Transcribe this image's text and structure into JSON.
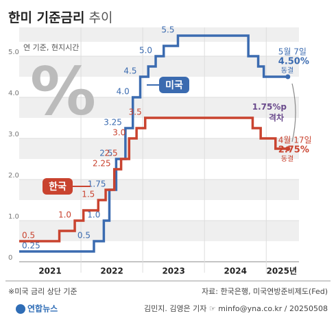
{
  "chart_data": {
    "type": "step",
    "title": "한미 기준금리",
    "title_suffix": "추이",
    "subtitle": "연 기준, 현지시간",
    "icon": "%",
    "xlim": [
      2021.0,
      2025.53
    ],
    "ylim": [
      0,
      5.7
    ],
    "yticks": [
      0,
      {
        "value": 1,
        "label": "1.0"
      },
      {
        "value": 2,
        "label": "2.0"
      },
      {
        "value": 3,
        "label": "3.0"
      },
      {
        "value": 4,
        "label": "4.0"
      },
      {
        "value": 5,
        "label": "5.0"
      }
    ],
    "xticks": [
      {
        "value": 2021.5,
        "label": "2021"
      },
      {
        "value": 2022.5,
        "label": "2022"
      },
      {
        "value": 2023.5,
        "label": "2023"
      },
      {
        "value": 2024.5,
        "label": "2024"
      },
      {
        "value": 2025.25,
        "label": "2025년"
      }
    ],
    "xgrid": [
      2022,
      2023,
      2024,
      2025
    ],
    "grid": true,
    "series": [
      {
        "name": "미국",
        "color": "#3b6bb0",
        "x": [
          2021.0,
          2022.21,
          2022.37,
          2022.46,
          2022.57,
          2022.72,
          2022.84,
          2022.96,
          2023.09,
          2023.21,
          2023.34,
          2023.57,
          2024.71,
          2024.87,
          2024.96,
          2025.35
        ],
        "values": [
          0.25,
          0.5,
          1.0,
          1.75,
          2.5,
          3.25,
          4.0,
          4.5,
          4.75,
          5.0,
          5.25,
          5.5,
          5.0,
          4.75,
          4.5,
          4.5
        ],
        "value_labels": [
          "0.25",
          "0.5",
          "1.0",
          "1.75",
          "2.5",
          "3.25",
          "4.0",
          "4.5",
          null,
          "5.0",
          null,
          "5.5",
          null,
          null,
          null,
          "4.50%"
        ],
        "end_date": "5월 7일",
        "end_note": "동결"
      },
      {
        "name": "한국",
        "color": "#c9432f",
        "x": [
          2021.0,
          2021.65,
          2021.9,
          2022.04,
          2022.28,
          2022.4,
          2022.54,
          2022.65,
          2022.78,
          2022.9,
          2023.04,
          2024.78,
          2024.91,
          2025.15,
          2025.35
        ],
        "values": [
          0.5,
          0.75,
          1.0,
          1.25,
          1.5,
          1.75,
          2.25,
          2.5,
          3.0,
          3.25,
          3.5,
          3.25,
          3.0,
          2.75,
          2.75
        ],
        "value_labels": [
          "0.5",
          null,
          "1.0",
          null,
          "1.5",
          null,
          "2.25",
          "2.5",
          "3.0",
          null,
          "3.5",
          null,
          null,
          null,
          "2.75%"
        ],
        "end_date": "4월 17일",
        "end_note": "동결"
      }
    ],
    "gap_label": "1.75%p",
    "gap_note": "격차",
    "footnote": "※미국 금리 상단 기준",
    "source": "자료: 한국은행, 미국연방준비제도(Fed)",
    "logo": "연합뉴스",
    "credit": "김민지. 김영은 기자 ☞ minfo@yna.co.kr / 20250508"
  }
}
